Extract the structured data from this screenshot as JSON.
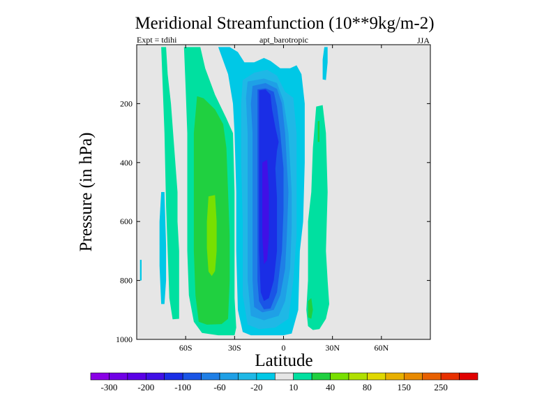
{
  "chart_data": {
    "type": "filled-contour",
    "title": "Meridional Streamfunction (10**9kg/m-2)",
    "subtitle_left": "Expt = tdihi",
    "subtitle_center": "apt_barotropic",
    "subtitle_right": "JJA",
    "xlabel": "Latitude",
    "ylabel": "Pressure (in hPa)",
    "xlim": [
      -90,
      90
    ],
    "ylim": [
      0,
      1000
    ],
    "y_inverted": true,
    "x_ticks": [
      {
        "value": -60,
        "label": "60S"
      },
      {
        "value": -30,
        "label": "30S"
      },
      {
        "value": 0,
        "label": "0"
      },
      {
        "value": 30,
        "label": "30N"
      },
      {
        "value": 60,
        "label": "60N"
      }
    ],
    "y_ticks": [
      {
        "value": 200,
        "label": "200"
      },
      {
        "value": 400,
        "label": "400"
      },
      {
        "value": 600,
        "label": "600"
      },
      {
        "value": 800,
        "label": "800"
      },
      {
        "value": 1000,
        "label": "1000"
      }
    ],
    "background_color": "#e6e6e6",
    "colorbar": {
      "colors": [
        "#8a00e6",
        "#7000e6",
        "#5a00e6",
        "#4010e6",
        "#1a2ee6",
        "#1a55e6",
        "#1f7fe6",
        "#1fa0e6",
        "#1fb8e6",
        "#00c8e6",
        "#e6e6e6",
        "#00e0a0",
        "#20d040",
        "#78e000",
        "#b0e000",
        "#e0d800",
        "#e8b000",
        "#e88a00",
        "#e86000",
        "#e83000",
        "#e00000"
      ],
      "labels": [
        "-300",
        "-200",
        "-100",
        "-60",
        "-20",
        "10",
        "40",
        "80",
        "150",
        "250"
      ]
    },
    "regions": [
      {
        "level": 10,
        "color": "#00e0a0",
        "points": [
          [
            -75,
            8
          ],
          [
            -72,
            8
          ],
          [
            -71,
            100
          ],
          [
            -69,
            200
          ],
          [
            -67,
            350
          ],
          [
            -65,
            500
          ],
          [
            -65,
            600
          ],
          [
            -64,
            700
          ],
          [
            -64,
            800
          ],
          [
            -64,
            930
          ],
          [
            -68,
            932
          ],
          [
            -70,
            860
          ],
          [
            -71,
            700
          ],
          [
            -72,
            550
          ],
          [
            -73,
            300
          ],
          [
            -74,
            150
          ]
        ]
      },
      {
        "level": 10,
        "color": "#00e0a0",
        "points": [
          [
            -61,
            8
          ],
          [
            -51,
            8
          ],
          [
            -48,
            80
          ],
          [
            -42,
            170
          ],
          [
            -35,
            250
          ],
          [
            -31,
            300
          ],
          [
            -30,
            500
          ],
          [
            -30,
            700
          ],
          [
            -30,
            860
          ],
          [
            -29,
            960
          ],
          [
            -30,
            986
          ],
          [
            -40,
            986
          ],
          [
            -50,
            978
          ],
          [
            -55,
            940
          ],
          [
            -58,
            850
          ],
          [
            -59,
            700
          ],
          [
            -59,
            500
          ],
          [
            -59,
            300
          ],
          [
            -60,
            150
          ]
        ]
      },
      {
        "level": 40,
        "color": "#20d040",
        "points": [
          [
            -53,
            175
          ],
          [
            -49,
            182
          ],
          [
            -42,
            220
          ],
          [
            -37,
            270
          ],
          [
            -35,
            350
          ],
          [
            -34,
            500
          ],
          [
            -33,
            650
          ],
          [
            -33,
            800
          ],
          [
            -34,
            930
          ],
          [
            -38,
            948
          ],
          [
            -47,
            950
          ],
          [
            -52,
            940
          ],
          [
            -54,
            850
          ],
          [
            -55,
            700
          ],
          [
            -55,
            500
          ],
          [
            -55,
            300
          ]
        ]
      },
      {
        "level": 80,
        "color": "#78e000",
        "points": [
          [
            -46,
            515
          ],
          [
            -42,
            510
          ],
          [
            -41,
            600
          ],
          [
            -41,
            700
          ],
          [
            -42,
            768
          ],
          [
            -44,
            785
          ],
          [
            -46,
            770
          ],
          [
            -47,
            690
          ],
          [
            -47,
            600
          ]
        ]
      },
      {
        "level": -20,
        "color": "#00c8e6",
        "points": [
          [
            -40,
            8
          ],
          [
            -33,
            8
          ],
          [
            -28,
            25
          ],
          [
            -24,
            60
          ],
          [
            -18,
            60
          ],
          [
            -12,
            45
          ],
          [
            -8,
            55
          ],
          [
            -2,
            80
          ],
          [
            4,
            80
          ],
          [
            8,
            70
          ],
          [
            11,
            100
          ],
          [
            13,
            200
          ],
          [
            13,
            400
          ],
          [
            12,
            600
          ],
          [
            10,
            700
          ],
          [
            9,
            900
          ],
          [
            5,
            980
          ],
          [
            0,
            986
          ],
          [
            -10,
            986
          ],
          [
            -20,
            986
          ],
          [
            -25,
            975
          ],
          [
            -28,
            900
          ],
          [
            -29,
            700
          ],
          [
            -29,
            500
          ],
          [
            -30,
            300
          ],
          [
            -31,
            200
          ],
          [
            -34,
            100
          ]
        ]
      },
      {
        "level": -20,
        "color": "#00c8e6",
        "points": [
          [
            -75,
            500
          ],
          [
            -73,
            500
          ],
          [
            -72,
            680
          ],
          [
            -72,
            800
          ],
          [
            -73,
            880
          ],
          [
            -75,
            880
          ],
          [
            -76,
            750
          ],
          [
            -76,
            600
          ]
        ]
      },
      {
        "level": -20,
        "color": "#00c8e6",
        "points": [
          [
            -88,
            730
          ],
          [
            -87,
            730
          ],
          [
            -87,
            800
          ],
          [
            -88,
            800
          ]
        ]
      },
      {
        "level": -20,
        "color": "#00c8e6",
        "points": [
          [
            25,
            8
          ],
          [
            27,
            8
          ],
          [
            27,
            60
          ],
          [
            26,
            120
          ],
          [
            24,
            118
          ],
          [
            24,
            50
          ]
        ]
      },
      {
        "level": -60,
        "color": "#1fb8e6",
        "points": [
          [
            -25,
            120
          ],
          [
            -18,
            95
          ],
          [
            -10,
            85
          ],
          [
            -4,
            105
          ],
          [
            1,
            160
          ],
          [
            6,
            180
          ],
          [
            8,
            300
          ],
          [
            8,
            500
          ],
          [
            8,
            650
          ],
          [
            6,
            800
          ],
          [
            3,
            930
          ],
          [
            -5,
            960
          ],
          [
            -15,
            965
          ],
          [
            -22,
            950
          ],
          [
            -25,
            850
          ],
          [
            -25,
            600
          ],
          [
            -26,
            400
          ],
          [
            -26,
            200
          ]
        ]
      },
      {
        "level": -100,
        "color": "#1fa0e6",
        "points": [
          [
            -22,
            125
          ],
          [
            -12,
            115
          ],
          [
            -4,
            130
          ],
          [
            0,
            190
          ],
          [
            3,
            300
          ],
          [
            5,
            500
          ],
          [
            5,
            620
          ],
          [
            4,
            760
          ],
          [
            1,
            870
          ],
          [
            -3,
            920
          ],
          [
            -12,
            935
          ],
          [
            -20,
            920
          ],
          [
            -22,
            800
          ],
          [
            -22,
            500
          ],
          [
            -22,
            300
          ],
          [
            -23,
            180
          ]
        ]
      },
      {
        "level": -200,
        "color": "#1f7fe6",
        "points": [
          [
            -19,
            140
          ],
          [
            -11,
            130
          ],
          [
            -4,
            150
          ],
          [
            -1,
            200
          ],
          [
            1,
            300
          ],
          [
            3,
            500
          ],
          [
            2,
            650
          ],
          [
            1,
            760
          ],
          [
            -2,
            850
          ],
          [
            -6,
            900
          ],
          [
            -13,
            908
          ],
          [
            -18,
            890
          ],
          [
            -19,
            800
          ],
          [
            -19,
            500
          ],
          [
            -19,
            300
          ],
          [
            -20,
            200
          ]
        ]
      },
      {
        "level": -300,
        "color": "#1a55e6",
        "points": [
          [
            -16,
            152
          ],
          [
            -11,
            148
          ],
          [
            -6,
            160
          ],
          [
            -4,
            210
          ],
          [
            -2,
            300
          ],
          [
            0,
            420
          ],
          [
            0,
            560
          ],
          [
            -1,
            700
          ],
          [
            -4,
            840
          ],
          [
            -8,
            895
          ],
          [
            -12,
            898
          ],
          [
            -15,
            870
          ],
          [
            -16,
            800
          ],
          [
            -16,
            600
          ],
          [
            -16,
            400
          ],
          [
            -16,
            250
          ]
        ]
      },
      {
        "level": -400,
        "color": "#1a2ee6",
        "points": [
          [
            -15,
            155
          ],
          [
            -11,
            152
          ],
          [
            -8,
            170
          ],
          [
            -7,
            220
          ],
          [
            -5,
            280
          ],
          [
            -3,
            330
          ],
          [
            -4,
            360
          ],
          [
            -5,
            420
          ],
          [
            -4,
            520
          ],
          [
            -4,
            600
          ],
          [
            -4,
            700
          ],
          [
            -6,
            800
          ],
          [
            -9,
            860
          ],
          [
            -12,
            870
          ],
          [
            -14,
            840
          ],
          [
            -15,
            700
          ],
          [
            -15,
            500
          ],
          [
            -15,
            300
          ],
          [
            -15,
            200
          ]
        ]
      },
      {
        "level": -500,
        "color": "#4010e6",
        "points": [
          [
            -13,
            400
          ],
          [
            -10,
            390
          ],
          [
            -9,
            500
          ],
          [
            -9,
            650
          ],
          [
            -10,
            730
          ],
          [
            -12,
            745
          ],
          [
            -13,
            650
          ],
          [
            -13,
            520
          ]
        ]
      },
      {
        "level": 10,
        "color": "#00e0a0",
        "points": [
          [
            20,
            210
          ],
          [
            24,
            205
          ],
          [
            26,
            300
          ],
          [
            27,
            500
          ],
          [
            26,
            700
          ],
          [
            27,
            800
          ],
          [
            28,
            880
          ],
          [
            26,
            930
          ],
          [
            22,
            965
          ],
          [
            18,
            968
          ],
          [
            15,
            955
          ],
          [
            14,
            900
          ],
          [
            15,
            800
          ],
          [
            15,
            600
          ],
          [
            17,
            500
          ],
          [
            18,
            350
          ]
        ]
      },
      {
        "level": 40,
        "color": "#20d040",
        "points": [
          [
            21,
            260
          ],
          [
            22,
            258
          ],
          [
            22,
            330
          ],
          [
            21,
            330
          ]
        ]
      },
      {
        "level": 40,
        "color": "#20d040",
        "points": [
          [
            15,
            870
          ],
          [
            17,
            860
          ],
          [
            18,
            900
          ],
          [
            17,
            930
          ],
          [
            15,
            925
          ]
        ]
      }
    ]
  }
}
